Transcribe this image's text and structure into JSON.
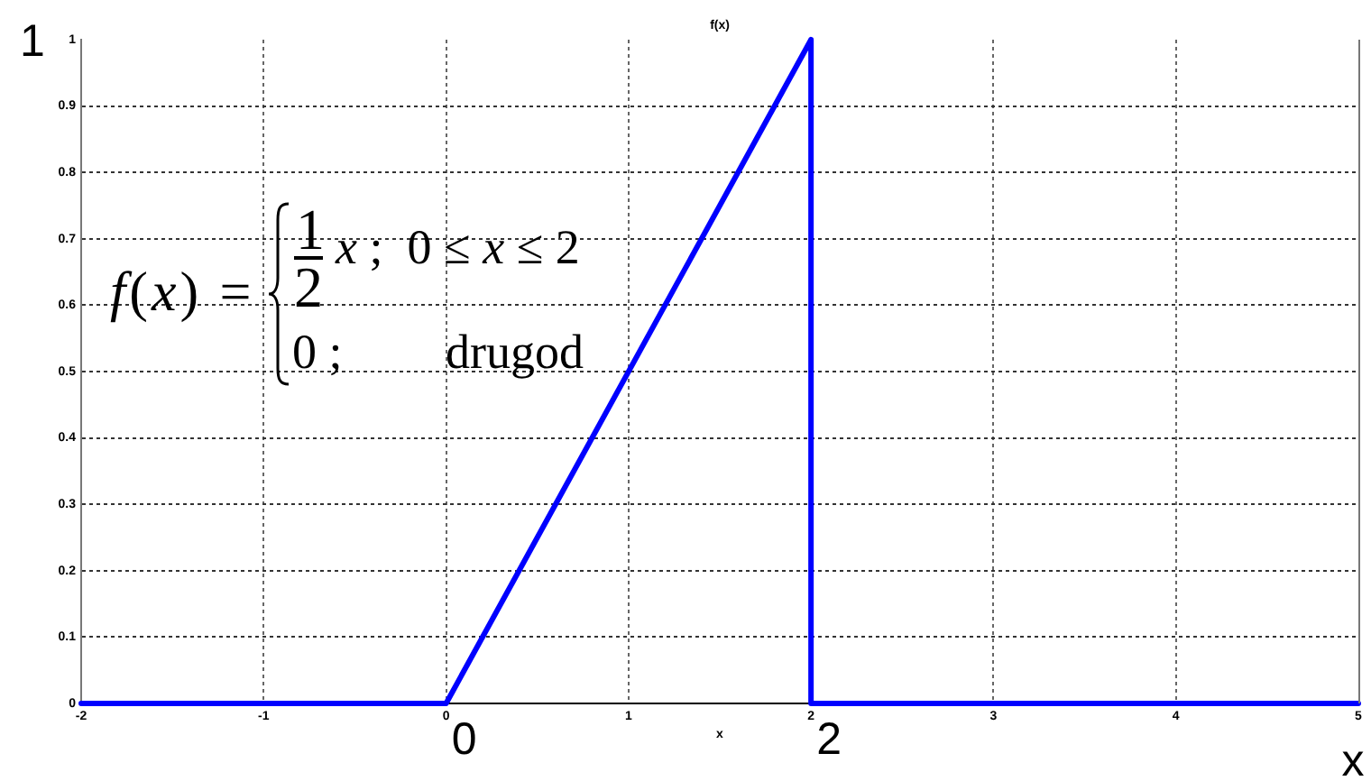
{
  "chart_data": {
    "type": "line",
    "title": "f(x)",
    "xlabel": "x",
    "x": [
      -2,
      0,
      2,
      2,
      5
    ],
    "series": [
      {
        "color": "#0000ff",
        "values": [
          0,
          0,
          1,
          0,
          0
        ]
      }
    ],
    "xlim": [
      -2,
      5
    ],
    "xticks": [
      -2,
      -1,
      0,
      1,
      2,
      3,
      4,
      5
    ],
    "ylim": [
      0,
      1
    ],
    "yticks": [
      0,
      0.1,
      0.2,
      0.3,
      0.4,
      0.5,
      0.6,
      0.7,
      0.8,
      0.9,
      1
    ],
    "grid": true,
    "annotations": [
      "f(x) =",
      "1",
      "2",
      "x ;  0 ≤ x ≤ 2",
      "0 ;",
      "drugod",
      "1",
      {
        "text": "0",
        "x": 0,
        "y": 0
      },
      {
        "text": "2",
        "x": 2,
        "y": 0
      },
      "x"
    ]
  }
}
